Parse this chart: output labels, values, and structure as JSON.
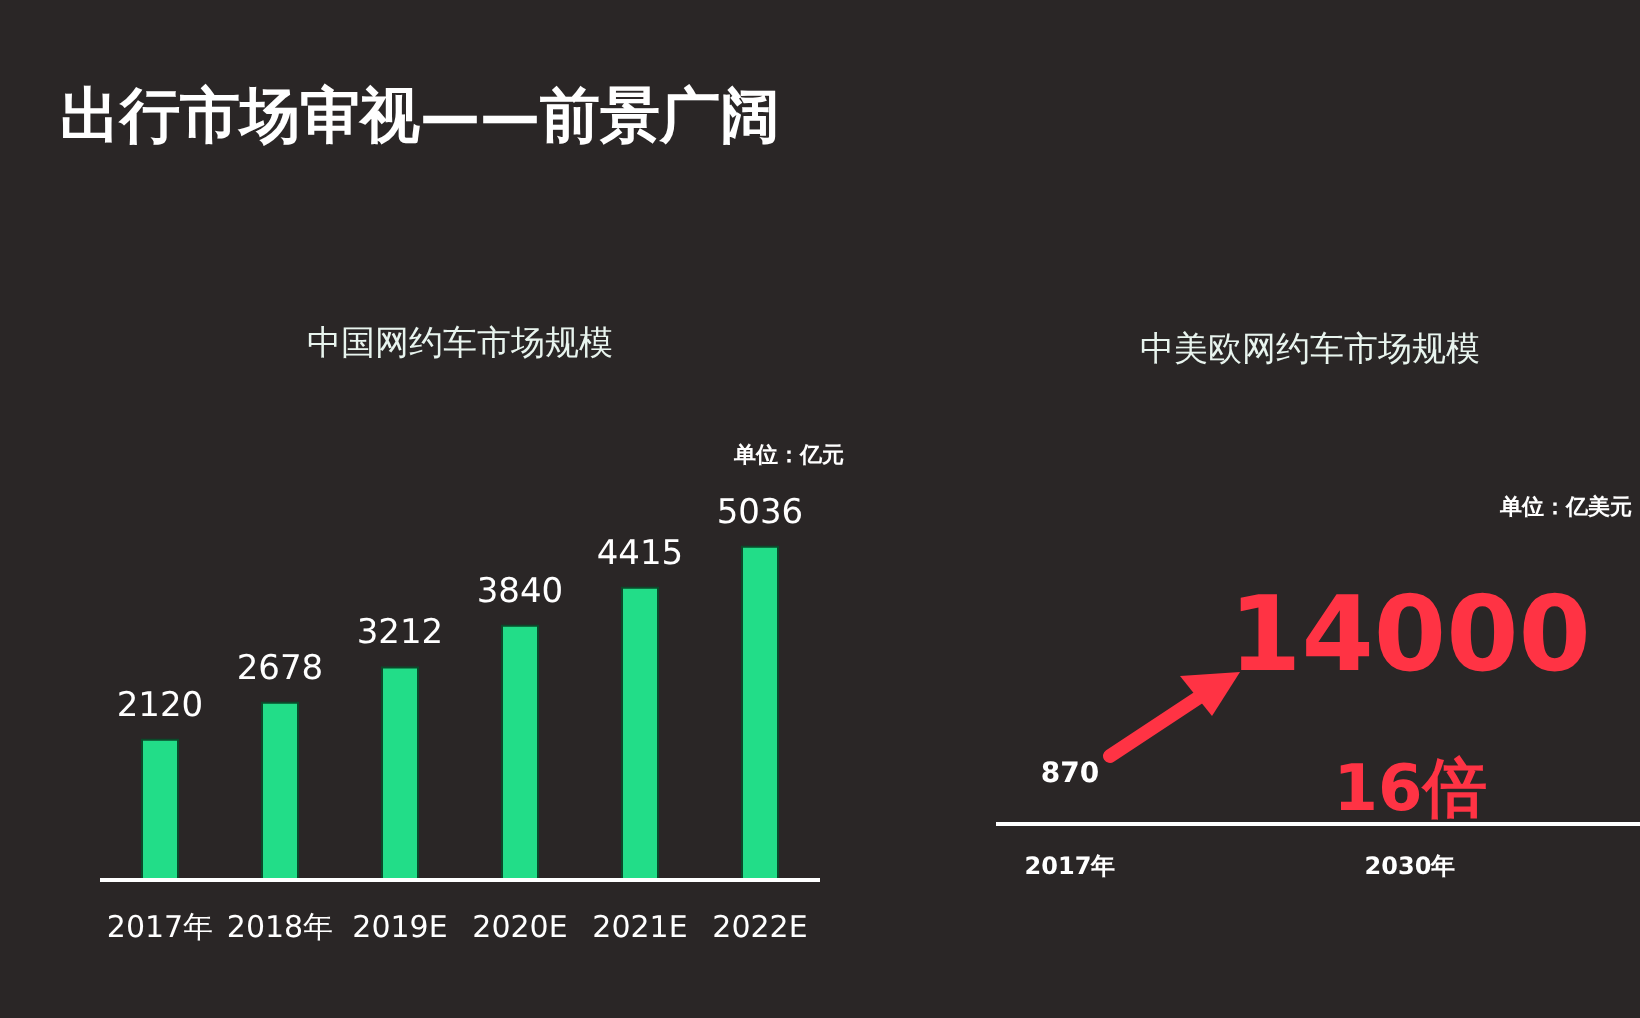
{
  "chart_data": [
    {
      "type": "bar",
      "title": "中国网约车市场规模",
      "categories": [
        "2017年",
        "2018年",
        "2019E",
        "2020E",
        "2021E",
        "2022E"
      ],
      "values": [
        2120,
        2678,
        3212,
        3840,
        4415,
        5036
      ],
      "color": "#22dd88",
      "data_labels": true,
      "tick_labels": "x",
      "grid": false,
      "legend": false,
      "annotations": [
        "出行市场审视——前景广阔",
        "单位：亿元"
      ]
    },
    {
      "type": "other",
      "title": "中美欧网约车市场规模",
      "categories": [
        "2017年",
        "2030年"
      ],
      "values": [
        870,
        14000
      ],
      "colors": [
        "#ffffff",
        "#ff3344"
      ],
      "data_labels": true,
      "annotations": [
        "单位：亿美元",
        "16倍"
      ]
    }
  ]
}
